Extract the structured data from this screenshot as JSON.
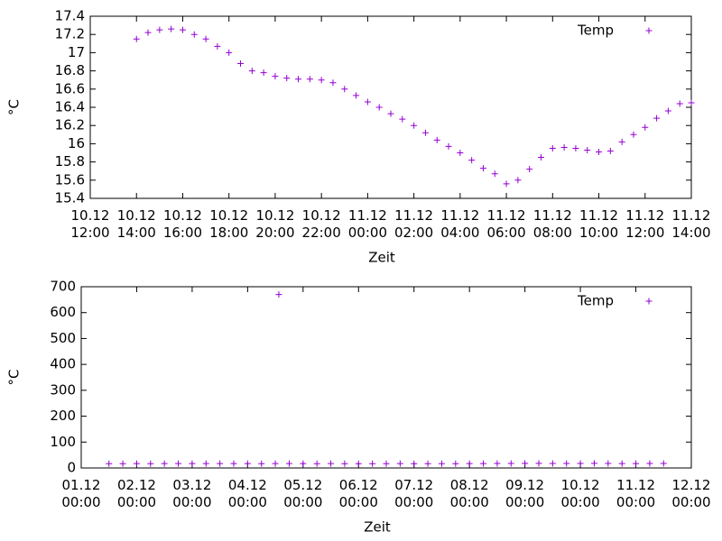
{
  "chart_data": [
    {
      "type": "scatter",
      "xlabel": "Zeit",
      "ylabel": "°C",
      "legend": "upper right",
      "xlim": [
        "10.12 12:00",
        "11.12 14:00"
      ],
      "xticks": [
        "10.12 12:00",
        "10.12 14:00",
        "10.12 16:00",
        "10.12 18:00",
        "10.12 20:00",
        "10.12 22:00",
        "11.12 00:00",
        "11.12 02:00",
        "11.12 04:00",
        "11.12 06:00",
        "11.12 08:00",
        "11.12 10:00",
        "11.12 12:00",
        "11.12 14:00"
      ],
      "ylim": [
        15.4,
        17.4
      ],
      "yticks": [
        15.4,
        15.6,
        15.8,
        16,
        16.2,
        16.4,
        16.6,
        16.8,
        17,
        17.2,
        17.4
      ],
      "series": [
        {
          "name": "Temp",
          "color": "#9400d3",
          "x": [
            "10.12 14:00",
            "10.12 14:30",
            "10.12 15:00",
            "10.12 15:30",
            "10.12 16:00",
            "10.12 16:30",
            "10.12 17:00",
            "10.12 17:30",
            "10.12 18:00",
            "10.12 18:30",
            "10.12 19:00",
            "10.12 19:30",
            "10.12 20:00",
            "10.12 20:30",
            "10.12 21:00",
            "10.12 21:30",
            "10.12 22:00",
            "10.12 22:30",
            "10.12 23:00",
            "10.12 23:30",
            "11.12 00:00",
            "11.12 00:30",
            "11.12 01:00",
            "11.12 01:30",
            "11.12 02:00",
            "11.12 02:30",
            "11.12 03:00",
            "11.12 03:30",
            "11.12 04:00",
            "11.12 04:30",
            "11.12 05:00",
            "11.12 05:30",
            "11.12 06:00",
            "11.12 06:30",
            "11.12 07:00",
            "11.12 07:30",
            "11.12 08:00",
            "11.12 08:30",
            "11.12 09:00",
            "11.12 09:30",
            "11.12 10:00",
            "11.12 10:30",
            "11.12 11:00",
            "11.12 11:30",
            "11.12 12:00",
            "11.12 12:30",
            "11.12 13:00",
            "11.12 13:30",
            "11.12 14:00"
          ],
          "values": [
            17.15,
            17.22,
            17.25,
            17.26,
            17.25,
            17.2,
            17.15,
            17.07,
            17.0,
            16.88,
            16.8,
            16.78,
            16.74,
            16.72,
            16.71,
            16.71,
            16.7,
            16.67,
            16.6,
            16.53,
            16.46,
            16.4,
            16.33,
            16.27,
            16.2,
            16.12,
            16.04,
            15.97,
            15.9,
            15.82,
            15.73,
            15.67,
            15.56,
            15.6,
            15.72,
            15.85,
            15.95,
            15.96,
            15.95,
            15.93,
            15.91,
            15.92,
            16.02,
            16.1,
            16.18,
            16.28,
            16.36,
            16.44,
            16.45
          ]
        }
      ]
    },
    {
      "type": "scatter",
      "xlabel": "Zeit",
      "ylabel": "°C",
      "legend": "upper right",
      "xlim": [
        "01.12 00:00",
        "12.12 00:00"
      ],
      "xticks": [
        "01.12 00:00",
        "02.12 00:00",
        "03.12 00:00",
        "04.12 00:00",
        "05.12 00:00",
        "06.12 00:00",
        "07.12 00:00",
        "08.12 00:00",
        "09.12 00:00",
        "10.12 00:00",
        "11.12 00:00",
        "12.12 00:00"
      ],
      "ylim": [
        0,
        700
      ],
      "yticks": [
        0,
        100,
        200,
        300,
        400,
        500,
        600,
        700
      ],
      "series": [
        {
          "name": "Temp",
          "color": "#9400d3",
          "x": [
            "01.12 12:00",
            "01.12 18:00",
            "02.12 00:00",
            "02.12 06:00",
            "02.12 12:00",
            "02.12 18:00",
            "03.12 00:00",
            "03.12 06:00",
            "03.12 12:00",
            "03.12 18:00",
            "04.12 00:00",
            "04.12 06:00",
            "04.12 12:00",
            "04.12 13:30",
            "04.12 18:00",
            "05.12 00:00",
            "05.12 06:00",
            "05.12 12:00",
            "05.12 18:00",
            "06.12 00:00",
            "06.12 06:00",
            "06.12 12:00",
            "06.12 18:00",
            "07.12 00:00",
            "07.12 06:00",
            "07.12 12:00",
            "07.12 18:00",
            "08.12 00:00",
            "08.12 06:00",
            "08.12 12:00",
            "08.12 18:00",
            "09.12 00:00",
            "09.12 06:00",
            "09.12 12:00",
            "09.12 18:00",
            "10.12 00:00",
            "10.12 06:00",
            "10.12 12:00",
            "10.12 18:00",
            "11.12 00:00",
            "11.12 06:00",
            "11.12 12:00"
          ],
          "values": [
            16.5,
            16.6,
            16.8,
            16.7,
            16.9,
            16.8,
            17,
            16.9,
            17.1,
            16.8,
            16.9,
            16.7,
            16.8,
            670,
            16.9,
            16.8,
            16.6,
            16.8,
            16.7,
            16.6,
            16.5,
            16.7,
            16.8,
            16.6,
            16.5,
            16.6,
            16.7,
            16.8,
            16.9,
            17.2,
            17.6,
            18,
            17.8,
            17.5,
            17.2,
            17.6,
            17.8,
            17.4,
            17,
            16.8,
            17.2,
            17.5
          ]
        }
      ]
    }
  ]
}
